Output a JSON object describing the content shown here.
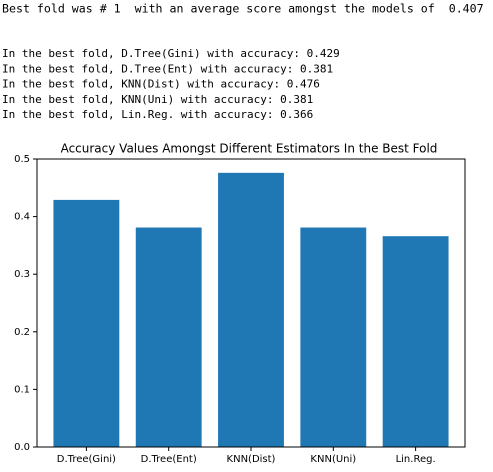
{
  "output_header": "Best fold was # 1  with an average score amongst the models of  0.407",
  "output_lines": [
    "In the best fold, D.Tree(Gini) with accuracy: 0.429",
    "In the best fold, D.Tree(Ent) with accuracy: 0.381",
    "In the best fold, KNN(Dist) with accuracy: 0.476",
    "In the best fold, KNN(Uni) with accuracy: 0.381",
    "In the best fold, Lin.Reg. with accuracy: 0.366"
  ],
  "chart_data": {
    "type": "bar",
    "title": "Accuracy Values Amongst Different Estimators In the Best Fold",
    "categories": [
      "D.Tree(Gini)",
      "D.Tree(Ent)",
      "KNN(Dist)",
      "KNN(Uni)",
      "Lin.Reg."
    ],
    "values": [
      0.429,
      0.381,
      0.476,
      0.381,
      0.366
    ],
    "color": "#1f77b4",
    "ylim": [
      0,
      0.5
    ],
    "yticks": [
      {
        "value": 0,
        "label": "0.0"
      },
      0.1,
      0.2,
      0.3,
      0.4,
      0.5
    ],
    "grid": false
  }
}
